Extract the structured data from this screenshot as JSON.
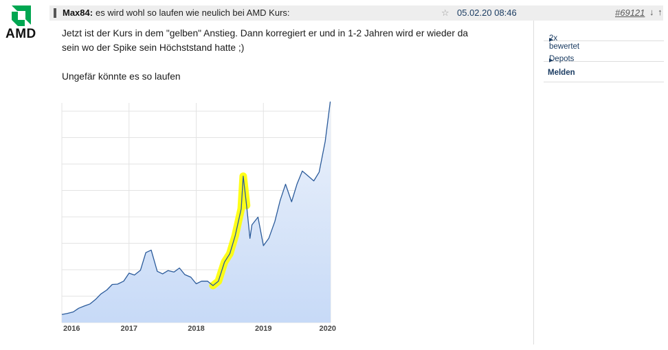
{
  "logo": {
    "text": "AMD",
    "color": "#00a651"
  },
  "post": {
    "author": "Max84:",
    "subject": "es wird wohl so laufen wie neulich bei AMD Kurs:",
    "star_icon": "star-icon",
    "date": "05.02.20 08:46",
    "id": "#69121",
    "down_arrow": "↓",
    "up_arrow": "↑",
    "body_line1": "Jetzt ist der Kurs in dem \"gelben\" Anstieg. Dann korregiert er und in 1-2 Jahren wird er wieder da",
    "body_line2": "sein wo der Spike sein Höchststand hatte ;)",
    "body_line3": "Ungefär könnte es so laufen"
  },
  "sidebar": {
    "items": [
      {
        "label": "2x bewertet"
      },
      {
        "label": "Depots"
      },
      {
        "label": "Melden"
      }
    ]
  },
  "chart_data": {
    "type": "area",
    "x_ticks": [
      "2016",
      "2017",
      "2018",
      "2019",
      "2020"
    ],
    "x_range": [
      2016.0,
      2020.0
    ],
    "y_range": [
      0,
      60
    ],
    "grid": true,
    "highlight": {
      "from": 2018.25,
      "to": 2018.75,
      "color": "#ffff00"
    },
    "series": [
      {
        "line_color": "#2a5a9a",
        "fill_color": "#c7daf7",
        "x": [
          2016.0,
          2016.08,
          2016.17,
          2016.25,
          2016.33,
          2016.42,
          2016.5,
          2016.58,
          2016.67,
          2016.75,
          2016.83,
          2016.92,
          2017.0,
          2017.08,
          2017.17,
          2017.25,
          2017.33,
          2017.42,
          2017.5,
          2017.58,
          2017.67,
          2017.75,
          2017.83,
          2017.92,
          2018.0,
          2018.08,
          2018.17,
          2018.25,
          2018.33,
          2018.42,
          2018.5,
          2018.58,
          2018.67,
          2018.7,
          2018.75,
          2018.8,
          2018.83,
          2018.92,
          2019.0,
          2019.08,
          2019.17,
          2019.25,
          2019.33,
          2019.42,
          2019.5,
          2019.58,
          2019.67,
          2019.75,
          2019.83,
          2019.92,
          2020.0
        ],
        "y": [
          2.2,
          2.5,
          2.9,
          3.9,
          4.5,
          5.1,
          6.3,
          7.8,
          8.9,
          10.4,
          10.5,
          11.3,
          13.5,
          13.0,
          14.3,
          19.1,
          19.8,
          14.0,
          13.3,
          14.2,
          13.8,
          14.9,
          13.1,
          12.4,
          10.6,
          11.3,
          11.3,
          10.1,
          11.3,
          16.5,
          18.8,
          23.7,
          31.1,
          40.0,
          32.0,
          23.0,
          26.7,
          28.8,
          21.0,
          23.0,
          27.6,
          33.4,
          37.8,
          33.0,
          37.8,
          41.4,
          40.0,
          38.7,
          41.1,
          49.5,
          61.0
        ]
      }
    ]
  }
}
